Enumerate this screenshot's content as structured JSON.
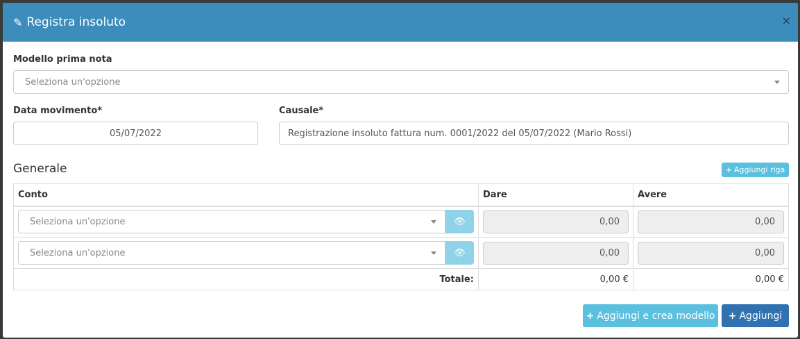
{
  "modal": {
    "title": "Registra insoluto",
    "close": "×"
  },
  "form": {
    "modello_label": "Modello prima nota",
    "modello_placeholder": "Seleziona un'opzione",
    "data_label": "Data movimento*",
    "data_value": "05/07/2022",
    "causale_label": "Causale*",
    "causale_value": "Registrazione insoluto fattura num. 0001/2022 del 05/07/2022 (Mario Rossi)"
  },
  "section": {
    "title": "Generale",
    "add_row": "Aggiungi riga"
  },
  "table": {
    "headers": [
      "Conto",
      "Dare",
      "Avere"
    ],
    "rows": [
      {
        "conto": "Seleziona un'opzione",
        "dare": "0,00",
        "avere": "0,00"
      },
      {
        "conto": "Seleziona un'opzione",
        "dare": "0,00",
        "avere": "0,00"
      }
    ],
    "total_label": "Totale:",
    "total_dare": "0,00 €",
    "total_avere": "0,00 €"
  },
  "footer": {
    "add_model": "Aggiungi e crea modello",
    "add": "Aggiungi"
  },
  "colors": {
    "header": "#3c8dbc",
    "info": "#5bc0de",
    "primary": "#3071b0"
  }
}
